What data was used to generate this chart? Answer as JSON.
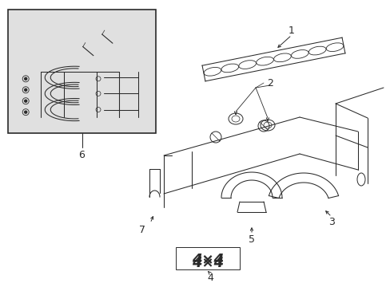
{
  "bg_color": "#ffffff",
  "lc": "#2a2a2a",
  "box_bg": "#e0e0e0",
  "lw": 0.75,
  "lw_thick": 1.1,
  "figsize": [
    4.89,
    3.6
  ],
  "dpi": 100
}
